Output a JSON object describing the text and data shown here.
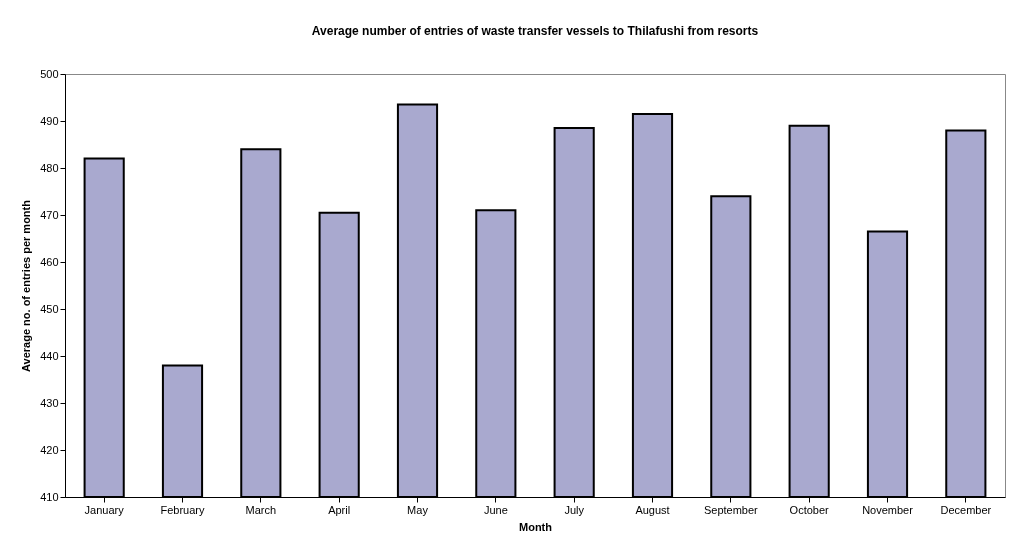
{
  "chart_data": {
    "type": "bar",
    "title": "Average number of entries of waste transfer vessels to Thilafushi from resorts",
    "xlabel": "Month",
    "ylabel": "Average no. of entries per month",
    "categories": [
      "January",
      "February",
      "March",
      "April",
      "May",
      "June",
      "July",
      "August",
      "September",
      "October",
      "November",
      "December"
    ],
    "values": [
      482,
      438,
      484,
      470.5,
      493.5,
      471,
      488.5,
      491.5,
      474,
      489,
      466.5,
      488
    ],
    "color": "#a9a9cf",
    "ylim": [
      410,
      500
    ],
    "yticks": [
      410,
      420,
      430,
      440,
      450,
      460,
      470,
      480,
      490,
      500
    ],
    "grid": false
  }
}
